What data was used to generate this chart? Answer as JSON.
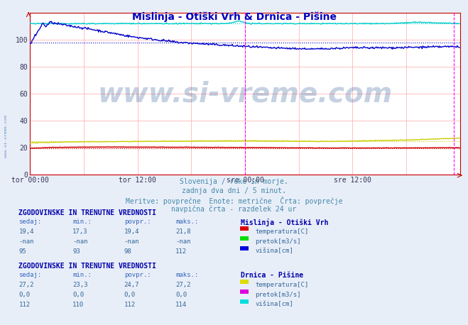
{
  "title": "Mislinja - Otiški Vrh & Drnica - Pišine",
  "title_color": "#0000bb",
  "bg_color": "#e8eef8",
  "plot_bg_color": "#ffffff",
  "xlim": [
    0,
    576
  ],
  "ylim": [
    0,
    120
  ],
  "yticks": [
    0,
    20,
    40,
    60,
    80,
    100
  ],
  "xlabel_ticks": [
    "tor 00:00",
    "tor 12:00",
    "sre 00:00",
    "sre 12:00"
  ],
  "xlabel_tick_pos": [
    0,
    144,
    288,
    432
  ],
  "grid_color": "#ffaaaa",
  "vline_color": "#ff00ff",
  "vline_pos": 288,
  "right_vline_pos": 567,
  "subtitle_lines": [
    "Slovenija / reke in morje.",
    "zadnja dva dni / 5 minut.",
    "Meritve: povprečne  Enote: metrične  Črta: povprečje",
    "navpična črta - razdelek 24 ur"
  ],
  "subtitle_color": "#4488aa",
  "watermark": "www.si-vreme.com",
  "watermark_color": "#1a4a8a",
  "watermark_alpha": 0.25,
  "sidebar_watermark_color": "#3366aa",
  "section1_header": "ZGODOVINSKE IN TRENUTNE VREDNOSTI",
  "section1_station": "Mislinja - Otiški Vrh",
  "section1_cols": [
    "sedaj:",
    "min.:",
    "povpr.:",
    "maks.:"
  ],
  "section1_rows": [
    [
      "19,4",
      "17,3",
      "19,4",
      "21,8"
    ],
    [
      "-nan",
      "-nan",
      "-nan",
      "-nan"
    ],
    [
      "95",
      "93",
      "98",
      "112"
    ]
  ],
  "section1_legend": [
    {
      "label": "temperatura[C]",
      "color": "#dd0000"
    },
    {
      "label": "pretok[m3/s]",
      "color": "#00dd00"
    },
    {
      "label": "višina[cm]",
      "color": "#0000dd"
    }
  ],
  "section2_header": "ZGODOVINSKE IN TRENUTNE VREDNOSTI",
  "section2_station": "Drnica - Pišine",
  "section2_cols": [
    "sedaj:",
    "min.:",
    "povpr.:",
    "maks.:"
  ],
  "section2_rows": [
    [
      "27,2",
      "23,3",
      "24,7",
      "27,2"
    ],
    [
      "0,0",
      "0,0",
      "0,0",
      "0,0"
    ],
    [
      "112",
      "110",
      "112",
      "114"
    ]
  ],
  "section2_legend": [
    {
      "label": "temperatura[C]",
      "color": "#dddd00"
    },
    {
      "label": "pretok[m3/s]",
      "color": "#dd00dd"
    },
    {
      "label": "višina[cm]",
      "color": "#00dddd"
    }
  ],
  "line_mislinja_temp_color": "#cc0000",
  "line_mislinja_height_color": "#0000cc",
  "line_drnica_temp_color": "#cccc00",
  "line_drnica_height_color": "#00cccc",
  "line_drnica_pretok_color": "#cc00cc",
  "border_color": "#cc0000"
}
